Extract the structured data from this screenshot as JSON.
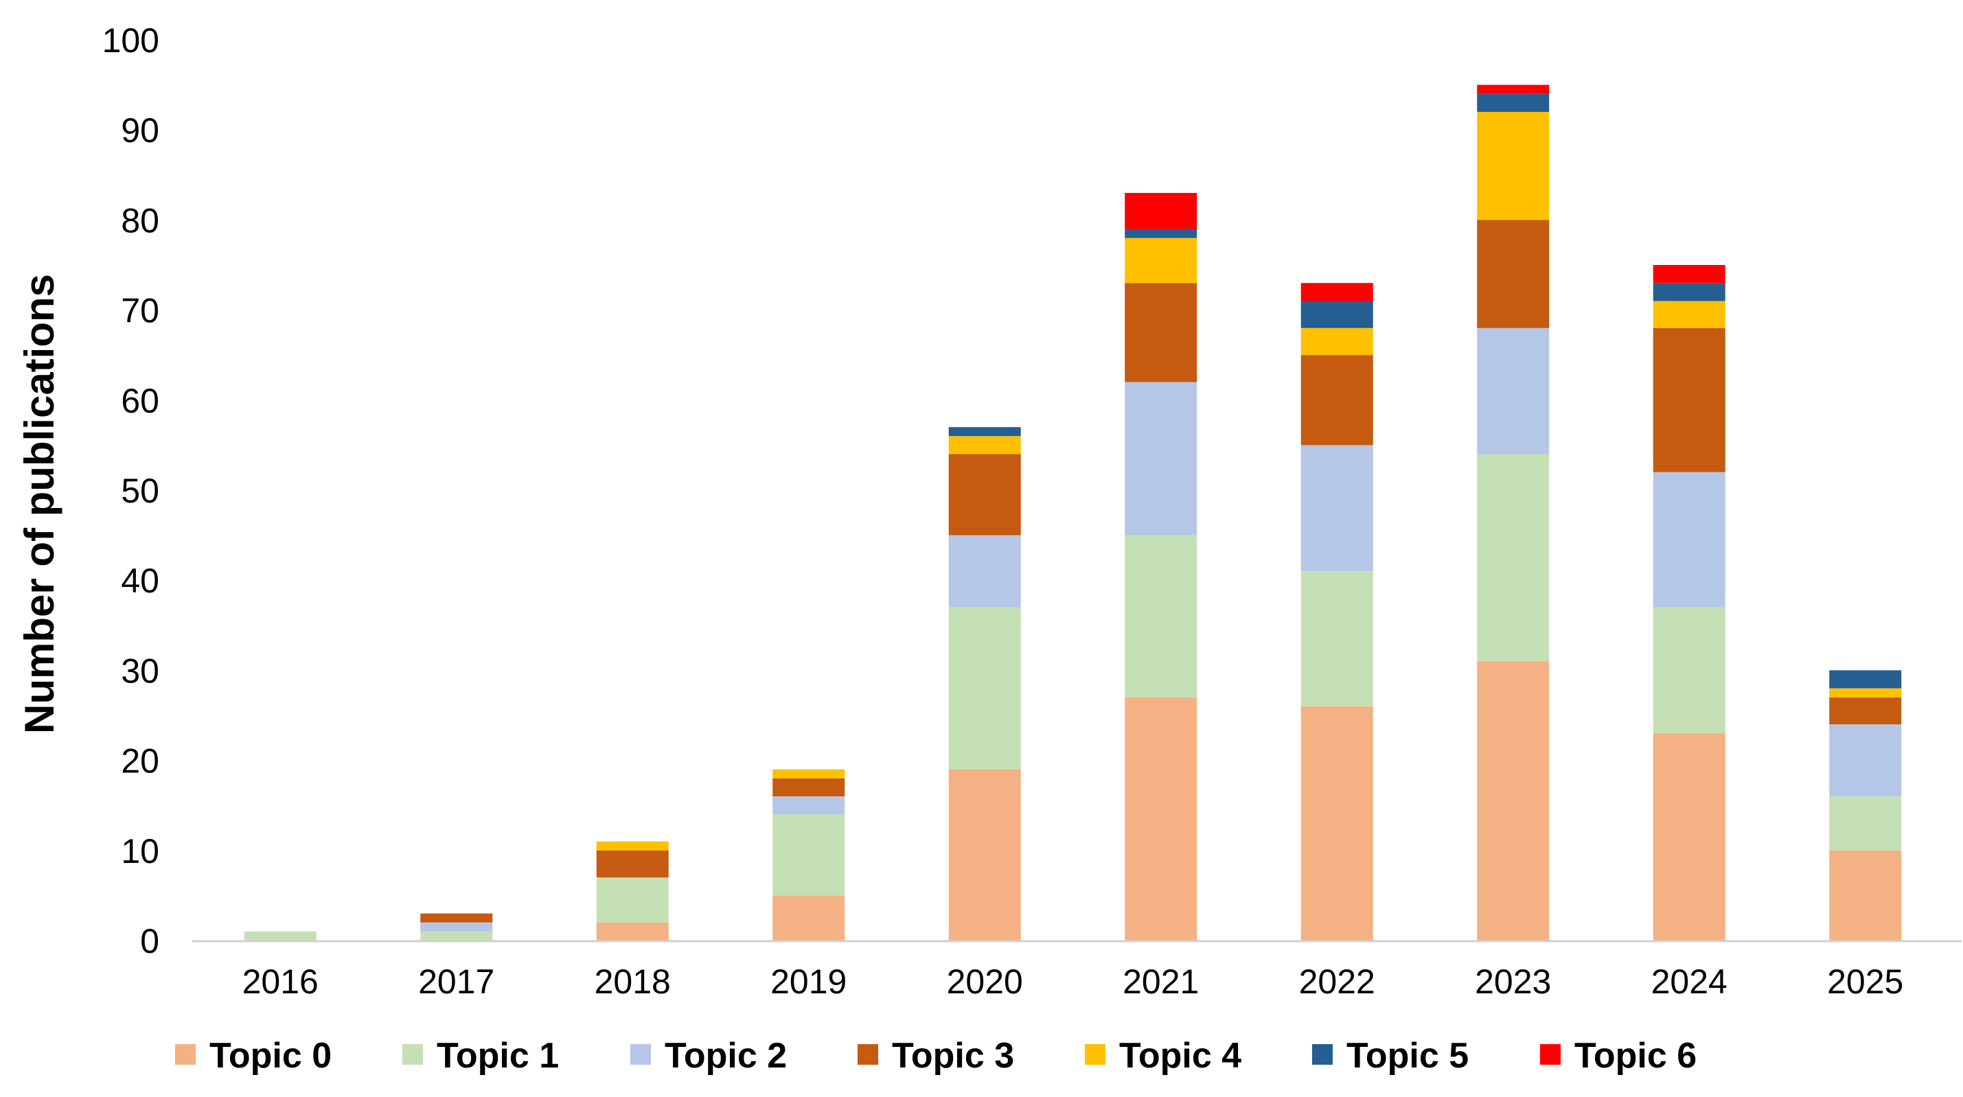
{
  "chart_data": {
    "type": "bar",
    "stacked": true,
    "title": "",
    "xlabel": "",
    "ylabel": "Number of  publications",
    "ylim": [
      0,
      100
    ],
    "yticks": [
      0,
      10,
      20,
      30,
      40,
      50,
      60,
      70,
      80,
      90,
      100
    ],
    "categories": [
      "2016",
      "2017",
      "2018",
      "2019",
      "2020",
      "2021",
      "2022",
      "2023",
      "2024",
      "2025"
    ],
    "legend_position": "bottom",
    "grid": false,
    "series": [
      {
        "name": "Topic 0",
        "color": "#F4B183",
        "values": [
          0,
          0,
          2,
          5,
          19,
          27,
          26,
          31,
          23,
          10
        ]
      },
      {
        "name": "Topic 1",
        "color": "#C5E0B4",
        "values": [
          1,
          1,
          5,
          9,
          18,
          18,
          15,
          23,
          14,
          6
        ]
      },
      {
        "name": "Topic 2",
        "color": "#B4C7E7",
        "values": [
          0,
          1,
          0,
          2,
          8,
          17,
          14,
          14,
          15,
          8
        ]
      },
      {
        "name": "Topic 3",
        "color": "#C55A11",
        "values": [
          0,
          1,
          3,
          2,
          9,
          11,
          10,
          12,
          16,
          3
        ]
      },
      {
        "name": "Topic 4",
        "color": "#FFC000",
        "values": [
          0,
          0,
          1,
          1,
          2,
          5,
          3,
          12,
          3,
          1
        ]
      },
      {
        "name": "Topic 5",
        "color": "#255E91",
        "values": [
          0,
          0,
          0,
          0,
          1,
          1,
          3,
          2,
          2,
          2
        ]
      },
      {
        "name": "Topic 6",
        "color": "#FF0000",
        "values": [
          0,
          0,
          0,
          0,
          0,
          4,
          2,
          1,
          2,
          0
        ]
      }
    ]
  }
}
